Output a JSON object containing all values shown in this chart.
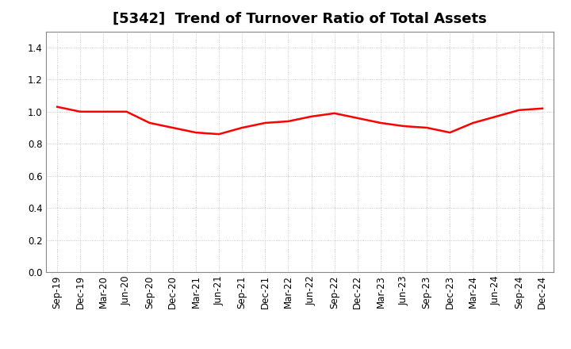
{
  "title": "[5342]  Trend of Turnover Ratio of Total Assets",
  "x_labels": [
    "Sep-19",
    "Dec-19",
    "Mar-20",
    "Jun-20",
    "Sep-20",
    "Dec-20",
    "Mar-21",
    "Jun-21",
    "Sep-21",
    "Dec-21",
    "Mar-22",
    "Jun-22",
    "Sep-22",
    "Dec-22",
    "Mar-23",
    "Jun-23",
    "Sep-23",
    "Dec-23",
    "Mar-24",
    "Jun-24",
    "Sep-24",
    "Dec-24"
  ],
  "y_values": [
    1.03,
    1.0,
    1.0,
    1.0,
    0.93,
    0.9,
    0.87,
    0.86,
    0.9,
    0.93,
    0.94,
    0.97,
    0.99,
    0.96,
    0.93,
    0.91,
    0.9,
    0.87,
    0.93,
    0.97,
    1.01,
    1.02
  ],
  "line_color": "#FF0000",
  "line_width": 1.8,
  "ylim": [
    0.0,
    1.5
  ],
  "yticks": [
    0.0,
    0.2,
    0.4,
    0.6,
    0.8,
    1.0,
    1.2,
    1.4
  ],
  "background_color": "#FFFFFF",
  "plot_bg_color": "#FFFFFF",
  "grid_color": "#BBBBBB",
  "title_fontsize": 13,
  "tick_fontsize": 8.5
}
